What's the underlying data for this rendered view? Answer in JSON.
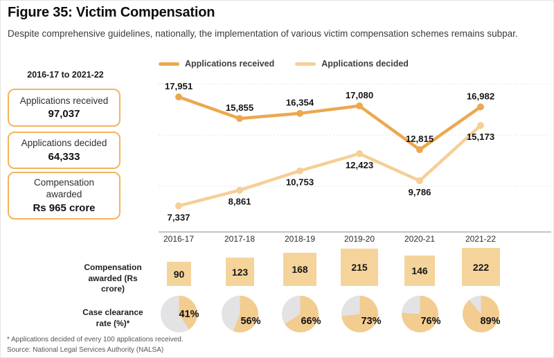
{
  "header": {
    "title": "Figure 35: Victim Compensation",
    "subtitle": "Despite comprehensive guidelines, nationally, the implementation of various victim compensation schemes remains subpar."
  },
  "summary_panel": {
    "period": "2016-17 to 2021-22",
    "stats": [
      {
        "label": "Applications received",
        "value": "97,037"
      },
      {
        "label": "Applications decided",
        "value": "64,333"
      },
      {
        "label": "Compensation awarded",
        "value": "Rs 965 crore"
      }
    ]
  },
  "chart_data": {
    "type": "line",
    "categories": [
      "2016-17",
      "2017-18",
      "2018-19",
      "2019-20",
      "2020-21",
      "2021-22"
    ],
    "series": [
      {
        "name": "Applications received",
        "color": "#ECA84E",
        "values": [
          17951,
          15855,
          16354,
          17080,
          12815,
          16982
        ],
        "labels": [
          "17,951",
          "15,855",
          "16,354",
          "17,080",
          "12,815",
          "16,982"
        ]
      },
      {
        "name": "Applications decided",
        "color": "#F5CF96",
        "values": [
          7337,
          8861,
          10753,
          12423,
          9786,
          15173
        ],
        "labels": [
          "7,337",
          "8,861",
          "10,753",
          "12,423",
          "9,786",
          "15,173"
        ]
      }
    ],
    "ylim": [
      7000,
      19000
    ],
    "grid": "dotted-horizontal",
    "legend_position": "top",
    "compensation_row": {
      "label": "Compensation awarded (Rs crore)",
      "values": [
        90,
        123,
        168,
        215,
        146,
        222
      ],
      "color": "#F5D49B"
    },
    "clearance_row": {
      "label": "Case clearance rate (%)*",
      "values": [
        41,
        56,
        66,
        73,
        76,
        89
      ],
      "labels": [
        "41%",
        "56%",
        "66%",
        "73%",
        "76%",
        "89%"
      ],
      "pie_color": "#F3CC90",
      "pie_bg": "#E3E3E5"
    }
  },
  "footnotes": [
    "* Applications decided of every 100 applications received.",
    "Source: National Legal Services Authority (NALSA)"
  ]
}
